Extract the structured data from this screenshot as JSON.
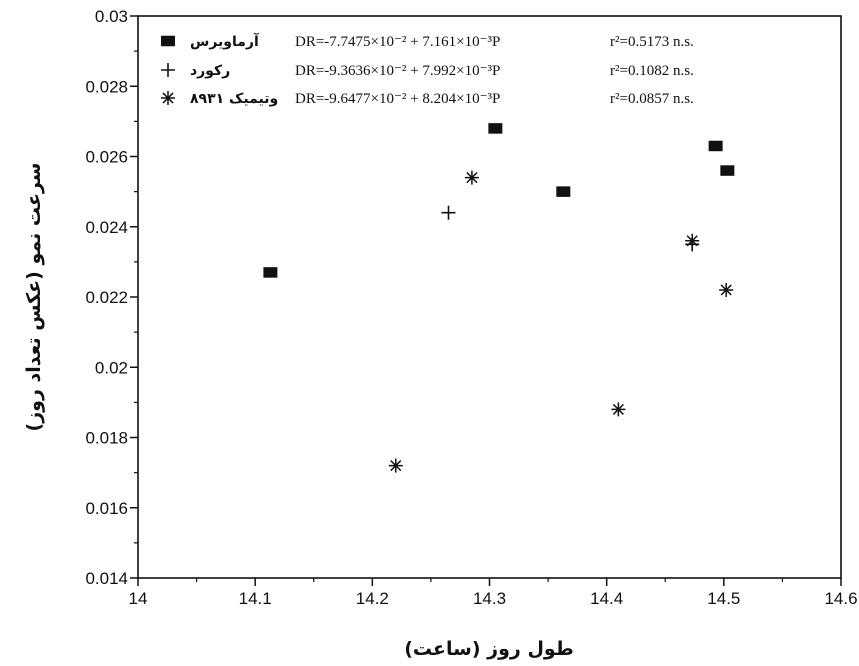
{
  "chart_data": {
    "type": "scatter",
    "xlabel": "طول روز (ساعت)",
    "ylabel": "سرعت نمو (عکس تعداد روز)",
    "xlim": [
      14,
      14.6
    ],
    "ylim": [
      0.014,
      0.03
    ],
    "x_ticks": [
      "14",
      "14.1",
      "14.2",
      "14.3",
      "14.4",
      "14.5",
      "14.6"
    ],
    "y_ticks": [
      "0.014",
      "0.016",
      "0.018",
      "0.02",
      "0.022",
      "0.024",
      "0.026",
      "0.028",
      "0.03"
    ],
    "grid": false,
    "legend_position": "top",
    "series": [
      {
        "name": "آرماویرس",
        "marker": "square",
        "equation": "DR=-7.7475×10⁻² + 7.161×10⁻³P",
        "r2": "r²=0.5173 n.s.",
        "points": [
          [
            14.113,
            0.0227
          ],
          [
            14.305,
            0.0268
          ],
          [
            14.363,
            0.025
          ],
          [
            14.493,
            0.0263
          ],
          [
            14.503,
            0.0256
          ]
        ]
      },
      {
        "name": "رکورد",
        "marker": "plus",
        "equation": "DR=-9.3636×10⁻² + 7.992×10⁻³P",
        "r2": "r²=0.1082 n.s.",
        "points": [
          [
            14.265,
            0.0244
          ],
          [
            14.473,
            0.0235
          ]
        ]
      },
      {
        "name": "وتیمیک ۸۹۳۱",
        "marker": "asterisk",
        "equation": "DR=-9.6477×10⁻² + 8.204×10⁻³P",
        "r2": "r²=0.0857 n.s.",
        "points": [
          [
            14.22,
            0.0172
          ],
          [
            14.285,
            0.0254
          ],
          [
            14.41,
            0.0188
          ],
          [
            14.473,
            0.0236
          ],
          [
            14.502,
            0.0222
          ]
        ]
      }
    ]
  }
}
